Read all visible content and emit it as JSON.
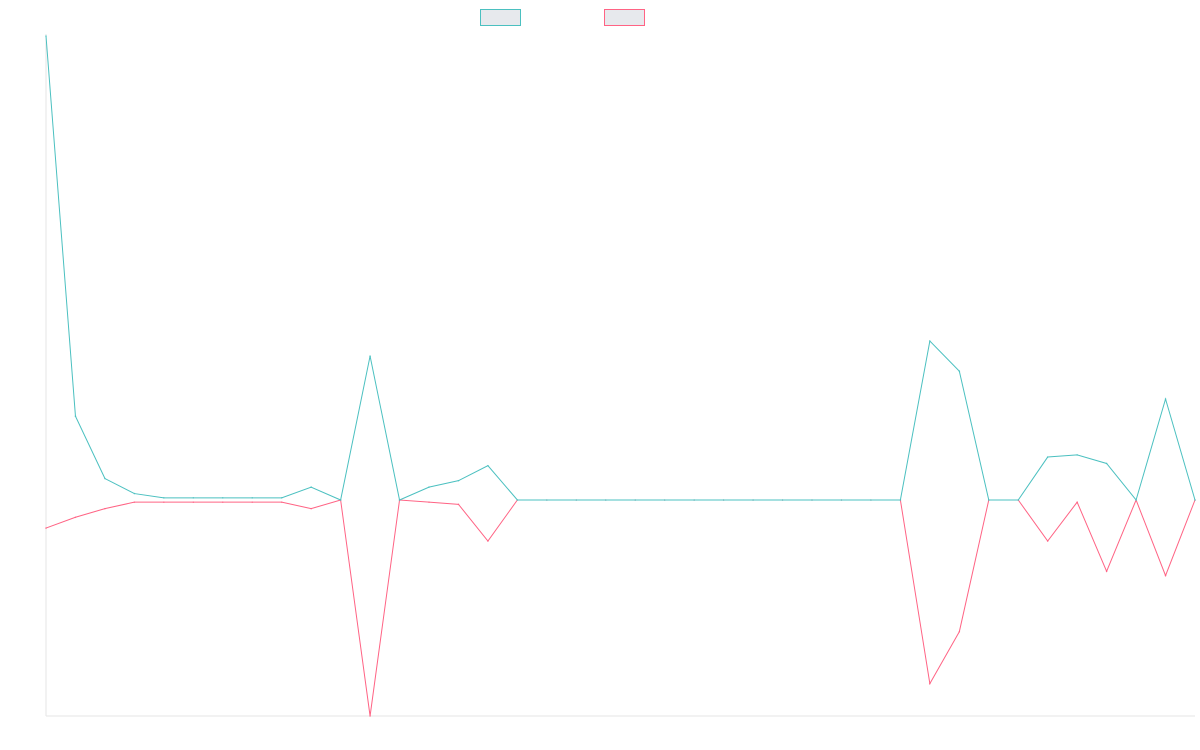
{
  "chart_data": {
    "type": "line",
    "title": "",
    "xlabel": "",
    "ylabel": "",
    "legend_position": "top-center",
    "grid": false,
    "ylim": [
      -100,
      100
    ],
    "x": [
      1,
      2,
      3,
      4,
      5,
      6,
      7,
      8,
      9,
      10,
      11,
      12,
      13,
      14,
      15,
      16,
      17,
      18,
      19,
      20,
      21,
      22,
      23,
      24,
      25,
      26,
      27,
      28,
      29,
      30,
      31,
      32,
      33,
      34,
      35,
      36,
      37,
      38,
      39,
      40
    ],
    "series": [
      {
        "name": "",
        "color": "#4BC0C0",
        "fill": "#E7E9ED",
        "values": [
          216,
          39,
          10,
          3,
          1,
          1,
          1,
          1,
          1,
          6,
          0,
          67,
          0,
          6,
          9,
          16,
          0,
          0,
          0,
          0,
          0,
          0,
          0,
          0,
          0,
          0,
          0,
          0,
          0,
          0,
          74,
          60,
          0,
          0,
          20,
          21,
          17,
          0,
          47,
          0
        ]
      },
      {
        "name": "",
        "color": "#FF6384",
        "fill": "#E7E9ED",
        "values": [
          -13,
          -8,
          -4,
          -1,
          -1,
          -1,
          -1,
          -1,
          -1,
          -4,
          0,
          -100,
          0,
          -1,
          -2,
          -19,
          0,
          0,
          0,
          0,
          0,
          0,
          0,
          0,
          0,
          0,
          0,
          0,
          0,
          0,
          -85,
          -61,
          0,
          0,
          -19,
          -1,
          -33,
          0,
          -35,
          0
        ]
      }
    ]
  }
}
